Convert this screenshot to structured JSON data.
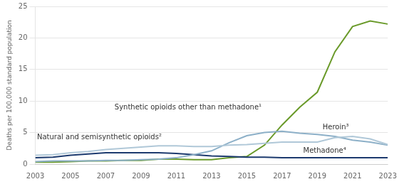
{
  "chart_data": {
    "type": "line",
    "ylabel": "Deaths per 100,000 standard population",
    "x": [
      2003,
      2004,
      2005,
      2006,
      2007,
      2008,
      2009,
      2010,
      2011,
      2012,
      2013,
      2014,
      2015,
      2016,
      2017,
      2018,
      2019,
      2020,
      2021,
      2022,
      2023
    ],
    "series": [
      {
        "name": "Natural and semisynthetic opioids²",
        "color": "#b0c8d8",
        "values": [
          1.4,
          1.5,
          1.8,
          2.0,
          2.3,
          2.5,
          2.7,
          2.9,
          2.9,
          2.8,
          2.8,
          3.0,
          3.1,
          3.3,
          3.5,
          3.5,
          3.5,
          4.2,
          4.4,
          4.0,
          3.1
        ]
      },
      {
        "name": "Heroin³",
        "color": "#8db0c8",
        "values": [
          0.4,
          0.5,
          0.5,
          0.5,
          0.6,
          0.6,
          0.7,
          0.8,
          1.0,
          1.5,
          2.1,
          3.4,
          4.5,
          5.0,
          5.2,
          4.9,
          4.7,
          4.4,
          3.8,
          3.5,
          3.0
        ]
      },
      {
        "name": "Methadone⁴",
        "color": "#1c3a6e",
        "values": [
          1.0,
          1.1,
          1.4,
          1.6,
          1.8,
          1.8,
          1.8,
          1.8,
          1.7,
          1.5,
          1.3,
          1.2,
          1.1,
          1.1,
          1.0,
          1.0,
          1.0,
          1.0,
          1.0,
          1.0,
          1.0
        ]
      },
      {
        "name": "Synthetic opioids other than methadone¹",
        "color": "#6a9a2a",
        "values": [
          0.3,
          0.3,
          0.4,
          0.5,
          0.5,
          0.6,
          0.6,
          0.8,
          0.8,
          0.7,
          0.7,
          1.0,
          1.2,
          3.0,
          6.2,
          9.0,
          11.4,
          17.8,
          21.8,
          22.7,
          22.2
        ]
      }
    ],
    "xlim": [
      2003,
      2023
    ],
    "xticks": [
      2003,
      2005,
      2007,
      2009,
      2011,
      2013,
      2015,
      2017,
      2019,
      2021,
      2023
    ],
    "ylim": [
      0,
      25
    ],
    "yticks": [
      0,
      5,
      10,
      15,
      20,
      25
    ],
    "grid": "y"
  }
}
